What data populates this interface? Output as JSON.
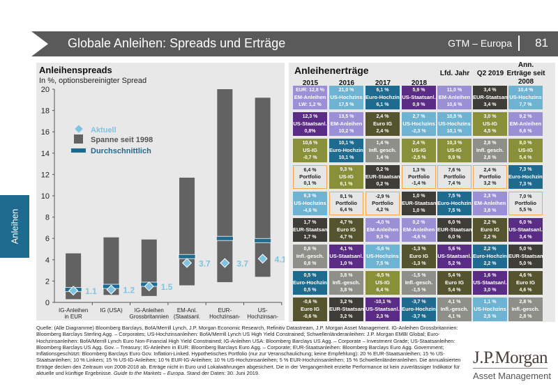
{
  "header": {
    "title": "Globale Anleihen: Spreads und Erträge",
    "region": "GTM – Europa",
    "page": "81"
  },
  "side_tab": "Anleihen",
  "colors": {
    "em": "#9b8fd6",
    "ushy": "#6fb3d2",
    "eurhy": "#1f6a8f",
    "ust": "#5b2c86",
    "eurs": "#3f3d38",
    "usig": "#8a8f3a",
    "euig": "#55542f",
    "infl": "#8f8f8a",
    "pf": "#e6e6e6",
    "avg": "#1f6a8f",
    "cur": "#7fc3df",
    "range": "#626262"
  },
  "chart_data": {
    "type": "bar",
    "title": "Anleihenspreads",
    "subtitle": "In %, optionsbereinigter Spread",
    "ylim": [
      0,
      20
    ],
    "yticks": [
      0,
      2,
      4,
      6,
      8,
      10,
      12,
      14,
      16,
      18,
      20
    ],
    "legend": {
      "current": "Aktuell",
      "range": "Spanne seit 1998",
      "average": "Durchschnittlich"
    },
    "categories": [
      [
        "IG-Anleihen",
        "in EUR"
      ],
      [
        "IG (USA)"
      ],
      [
        "IG-Anleihen",
        "Grossbritannien"
      ],
      [
        "EM-Anl.",
        "(Staatsanl.",
        "in USD)"
      ],
      [
        "EUR-",
        "Hochzinsan-",
        "leihen"
      ],
      [
        "US-",
        "Hochzinsan-",
        "leihen"
      ]
    ],
    "range_min": [
      0.3,
      0.7,
      0.6,
      1.6,
      1.9,
      2.4
    ],
    "range_max": [
      4.6,
      6.1,
      5.9,
      11.7,
      20.0,
      19.2
    ],
    "average": [
      1.2,
      1.5,
      1.7,
      4.3,
      6.0,
      5.8
    ],
    "current": [
      1.1,
      1.2,
      1.5,
      3.7,
      3.7,
      4.1
    ],
    "current_labels": [
      "1.1",
      "1.2",
      "1.5",
      "3.7",
      "3.7",
      "4.1"
    ]
  },
  "returns": {
    "title": "Anleihenerträge",
    "columns": [
      "2015",
      "2016",
      "2017",
      "2018",
      "Lfd. Jahr",
      "Q2 2019",
      "Ann. Erträge seit 2008"
    ],
    "rows": [
      [
        [
          "EUR: 12,8 %",
          "EM-Anleihen",
          "LW: 1,2 %",
          "em"
        ],
        [
          "21,0 %",
          "US-Hochzins",
          "17,5 %",
          "ushy"
        ],
        [
          "6,1 %",
          "Euro-Hochzins",
          "6,1 %",
          "eurhy"
        ],
        [
          "5,9 %",
          "US-Staatsanl.",
          "0,9 %",
          "ust"
        ],
        [
          "11,0 %",
          "EM-Anleihen",
          "10,6 %",
          "em"
        ],
        [
          "3,4 %",
          "EUR-Staatsanl.",
          "3,4 %",
          "eurs"
        ],
        [
          "10,4 %",
          "US-Hochzins",
          "7,7 %",
          "ushy"
        ]
      ],
      [
        [
          "12,3 %",
          "US-Staatsanl.",
          "0,8%",
          "ust"
        ],
        [
          "13,5 %",
          "EM-Anleihen",
          "10,2 %",
          "em"
        ],
        [
          "2,4 %",
          "Euro IG",
          "2,4 %",
          "euig"
        ],
        [
          "2,7 %",
          "US-Hochzins",
          "-2,3 %",
          "ushy"
        ],
        [
          "10,5 %",
          "US-Hochzins",
          "10,1 %",
          "ushy"
        ],
        [
          "3,0 %",
          "US-IG",
          "4,5 %",
          "usig"
        ],
        [
          "9,2 %",
          "EM-Anleihen",
          "6,6 %",
          "em"
        ]
      ],
      [
        [
          "10,6 %",
          "US-IG",
          "-0,7 %",
          "usig"
        ],
        [
          "10,1 %",
          "Euro-Hochzins",
          "10,1 %",
          "eurhy"
        ],
        [
          "1,4 %",
          "Infl. gesch.",
          "1,4 %",
          "infl"
        ],
        [
          "2,4 %",
          "US-IG",
          "-2,5 %",
          "usig"
        ],
        [
          "10,3 %",
          "US-IG",
          "9,9 %",
          "usig"
        ],
        [
          "2,8 %",
          "Infl. gesch.",
          "2,8 %",
          "infl"
        ],
        [
          "8,0 %",
          "US-IG",
          "5,4 %",
          "usig"
        ]
      ],
      [
        [
          "6,4 %",
          "Portfolio",
          "0,1 %",
          "pf"
        ],
        [
          "9,3 %",
          "US-IG",
          "6,1 %",
          "usig"
        ],
        [
          "0,2 %",
          "EUR-Staatsanl.",
          "0,2 %",
          "eurs"
        ],
        [
          "1,3 %",
          "Portfolio",
          "-1,4 %",
          "pf"
        ],
        [
          "7,6 %",
          "Portfolio",
          "7,4 %",
          "pf"
        ],
        [
          "2,4 %",
          "Portfolio",
          "3,2 %",
          "pf"
        ],
        [
          "7,3 %",
          "Euro-Hochzins",
          "7,3 %",
          "eurhy"
        ]
      ],
      [
        [
          "6,3 %",
          "US-Hochzins",
          "-4,6 %",
          "ushy"
        ],
        [
          "8,1 %",
          "Portfolio",
          "6,4 %",
          "pf"
        ],
        [
          "-2,9 %",
          "Portfolio",
          "4,2 %",
          "pf"
        ],
        [
          "1,0 %",
          "EUR-Staatsanl.",
          "1,0 %",
          "eurs"
        ],
        [
          "7,5 %",
          "Euro-Hochzins",
          "7,5 %",
          "eurhy"
        ],
        [
          "2,3 %",
          "EM-Anleihen",
          "3,8 %",
          "em"
        ],
        [
          "7,0 %",
          "Portfolio",
          "5,5 %",
          "pf"
        ]
      ],
      [
        [
          "1,7 %",
          "EUR-Staatsanl.",
          "1,7 %",
          "eurs"
        ],
        [
          "4,7 %",
          "Euro IG",
          "4,7 %",
          "euig"
        ],
        [
          "-4,0 %",
          "EM-Anleihen",
          "9,3 %",
          "em"
        ],
        [
          "0,2 %",
          "EM-Anleihen",
          "-4,6 %",
          "em"
        ],
        [
          "6,0 %",
          "EUR-Staatsanl.",
          "6,0 %",
          "eurs"
        ],
        [
          "2,2 %",
          "Euro IG",
          "2,2 %",
          "euig"
        ],
        [
          "6,0 %",
          "US-Staatsanl.",
          "3,4 %",
          "ust"
        ]
      ],
      [
        [
          "0,8 %",
          "Infl.-gesch.",
          "0,8 %",
          "infl"
        ],
        [
          "4,1 %",
          "US-Staatsanl.",
          "1,0 %",
          "ust"
        ],
        [
          "-5,6 %",
          "US-Hochzins",
          "7,5 %",
          "ushy"
        ],
        [
          "-1,3 %",
          "Euro IG",
          "-1,3 %",
          "euig"
        ],
        [
          "5,6 %",
          "US-Staatsanl.",
          "5,2 %",
          "ust"
        ],
        [
          "2,2 %",
          "Euro-Hochzins",
          "2,2 %",
          "eurhy"
        ],
        [
          "5,0 %",
          "EUR-Staatsanl.",
          "5,0 %",
          "eurs"
        ]
      ],
      [
        [
          "0,5 %",
          "Euro-Hochzins",
          "0,5 %",
          "eurhy"
        ],
        [
          "3,8 %",
          "Infl.-gesch.",
          "3,8 %",
          "infl"
        ],
        [
          "-6,5 %",
          "US-IG",
          "6,4 %",
          "usig"
        ],
        [
          "-1,5 %",
          "Infl.-gesch.",
          "-1,5 %",
          "infl"
        ],
        [
          "5,4 %",
          "Euro IG",
          "5,4 %",
          "euig"
        ],
        [
          "1,6 %",
          "US-Staatsanl.",
          "3,0 %",
          "ust"
        ],
        [
          "4,6 %",
          "Euro IG",
          "4,6 %",
          "euig"
        ]
      ],
      [
        [
          "-0,6 %",
          "Euro IG",
          "-0,6 %",
          "euig"
        ],
        [
          "3,2 %",
          "EUR-Staatsanl.",
          "3,2 %",
          "eurs"
        ],
        [
          "-10,1 %",
          "US-Staatsanl.",
          "2,3 %",
          "ust"
        ],
        [
          "-3,7 %",
          "Euro-Hochzins",
          "-3,7 %",
          "eurhy"
        ],
        [
          "4,1 %",
          "Infl.-gesch.",
          "4,1 %",
          "infl"
        ],
        [
          "1,1 %",
          "US-Hochzins",
          "2,5 %",
          "ushy"
        ],
        [
          "2,8 %",
          "Infl.-gesch.",
          "2,8 %",
          "infl"
        ]
      ]
    ]
  },
  "footer": {
    "text": "Quelle: (Alle Diagramme) Bloomberg Barclays, BofA/Merrill Lynch, J.P. Morgan Economic Research, Refinitiv Datastream, J.P. Morgan Asset Management. IG-Anleihen Grossbritannien: Bloomberg Barclays Sterling Agg. – Corporates; US-Hochzinsanleihen: BofA/Merrill Lynch US High Yield Constrained; Schwellenländeranleihen: J.P. Morgan EMBI Global; Euro-Hochzinsanleihen: BofA/Merrill Lynch Euro Non-Financial High Yield Constrained; IG-Anleihen USA: Bloomberg Barclays US Agg. – Corporate – Investment Grade; US-Staatsanleihen: Bloomberg Barclays US Agg. Gov. – Treasury; IG-Anleihen in EUR: Bloomberg Barclays Euro Agg. – Corporate; EUR-Staatsanleihen: Bloomberg Barclays Euro Agg. Government; Inflationsgeschützt: Bloomberg Barclays Euro Gov. Inflation-Linked. Hypothetisches Portfolio (nur zur Veranschaulichung; keine Empfehlung): 20 % EUR-Staatsanleihen; 15 % US-Staatsanleihen; 10 % Linkers; 15 % US-IG-Anleihen; 10 % EUR-IG-Anleihen; 10 % US-Hochzinsanleihen; 5 % EUR-Hochzinsanleihen; 15 % Schwellenländeranleihen. Die annualisierten Erträge decken den Zeitraum von 2008-2018 ab. Erträge nicht in Euro und Lokalwährungen abgesichert. Die in der Vergangenheit erzielte Performance ist kein zuverlässiger Indikator für aktuelle und künftige Ergebnisse. ",
    "guide": "Guide to the Markets – Europa.",
    "date": " Stand der Daten: 30. Juni 2019."
  },
  "logo": {
    "name": "J.P.Morgan",
    "sub": "Asset Management"
  }
}
